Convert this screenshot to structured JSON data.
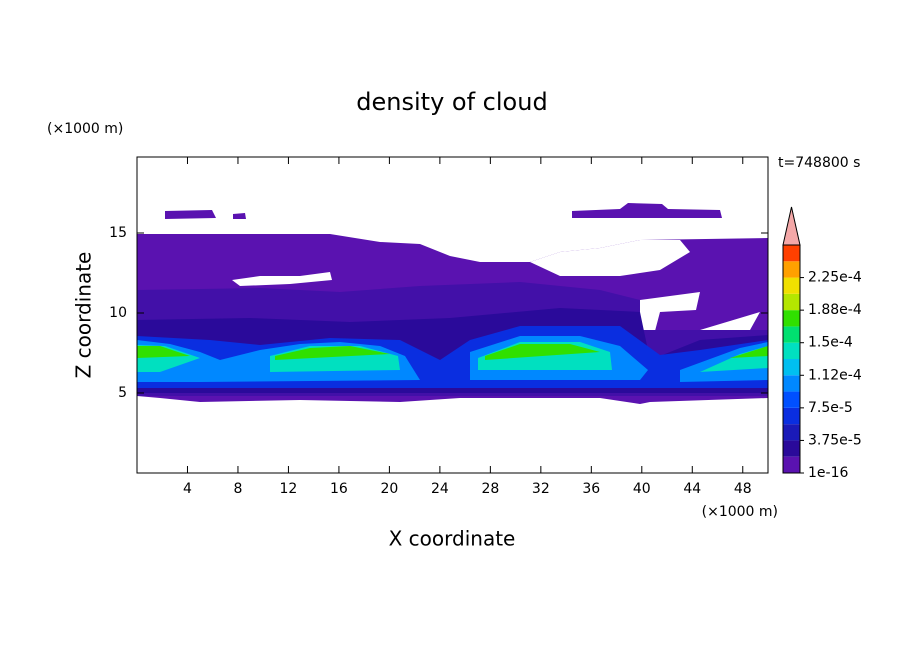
{
  "chart_data": {
    "type": "contour",
    "title": "density of cloud",
    "x_label": "X coordinate",
    "y_label": "Z coordinate",
    "x_unit": "(×1000 m)",
    "y_unit": "(×1000 m)",
    "time_label": "t=748800 s",
    "xlim": [
      0,
      50
    ],
    "ylim": [
      0,
      19.75
    ],
    "xticks": [
      4,
      8,
      12,
      16,
      20,
      24,
      28,
      32,
      36,
      40,
      44,
      48
    ],
    "yticks": [
      5,
      10,
      15
    ],
    "colorbar": {
      "lim": [
        0,
        0.0002625
      ],
      "ticks": [
        {
          "value": 1e-16,
          "label": "1e-16"
        },
        {
          "value": 3.75e-05,
          "label": "3.75e-5"
        },
        {
          "value": 7.5e-05,
          "label": "7.5e-5"
        },
        {
          "value": 0.0001125,
          "label": "1.12e-4"
        },
        {
          "value": 0.00015,
          "label": "1.5e-4"
        },
        {
          "value": 0.0001875,
          "label": "1.88e-4"
        },
        {
          "value": 0.000225,
          "label": "2.25e-4"
        }
      ],
      "colors": [
        "#5a12b0",
        "#2a0a9a",
        "#1a1ab8",
        "#0a2ee0",
        "#0050ff",
        "#0088ff",
        "#00bff0",
        "#00e0c0",
        "#00e070",
        "#30e000",
        "#b4e600",
        "#f0e000",
        "#ffa000",
        "#ff4000"
      ],
      "extend_color": "#f4a8a8"
    }
  }
}
